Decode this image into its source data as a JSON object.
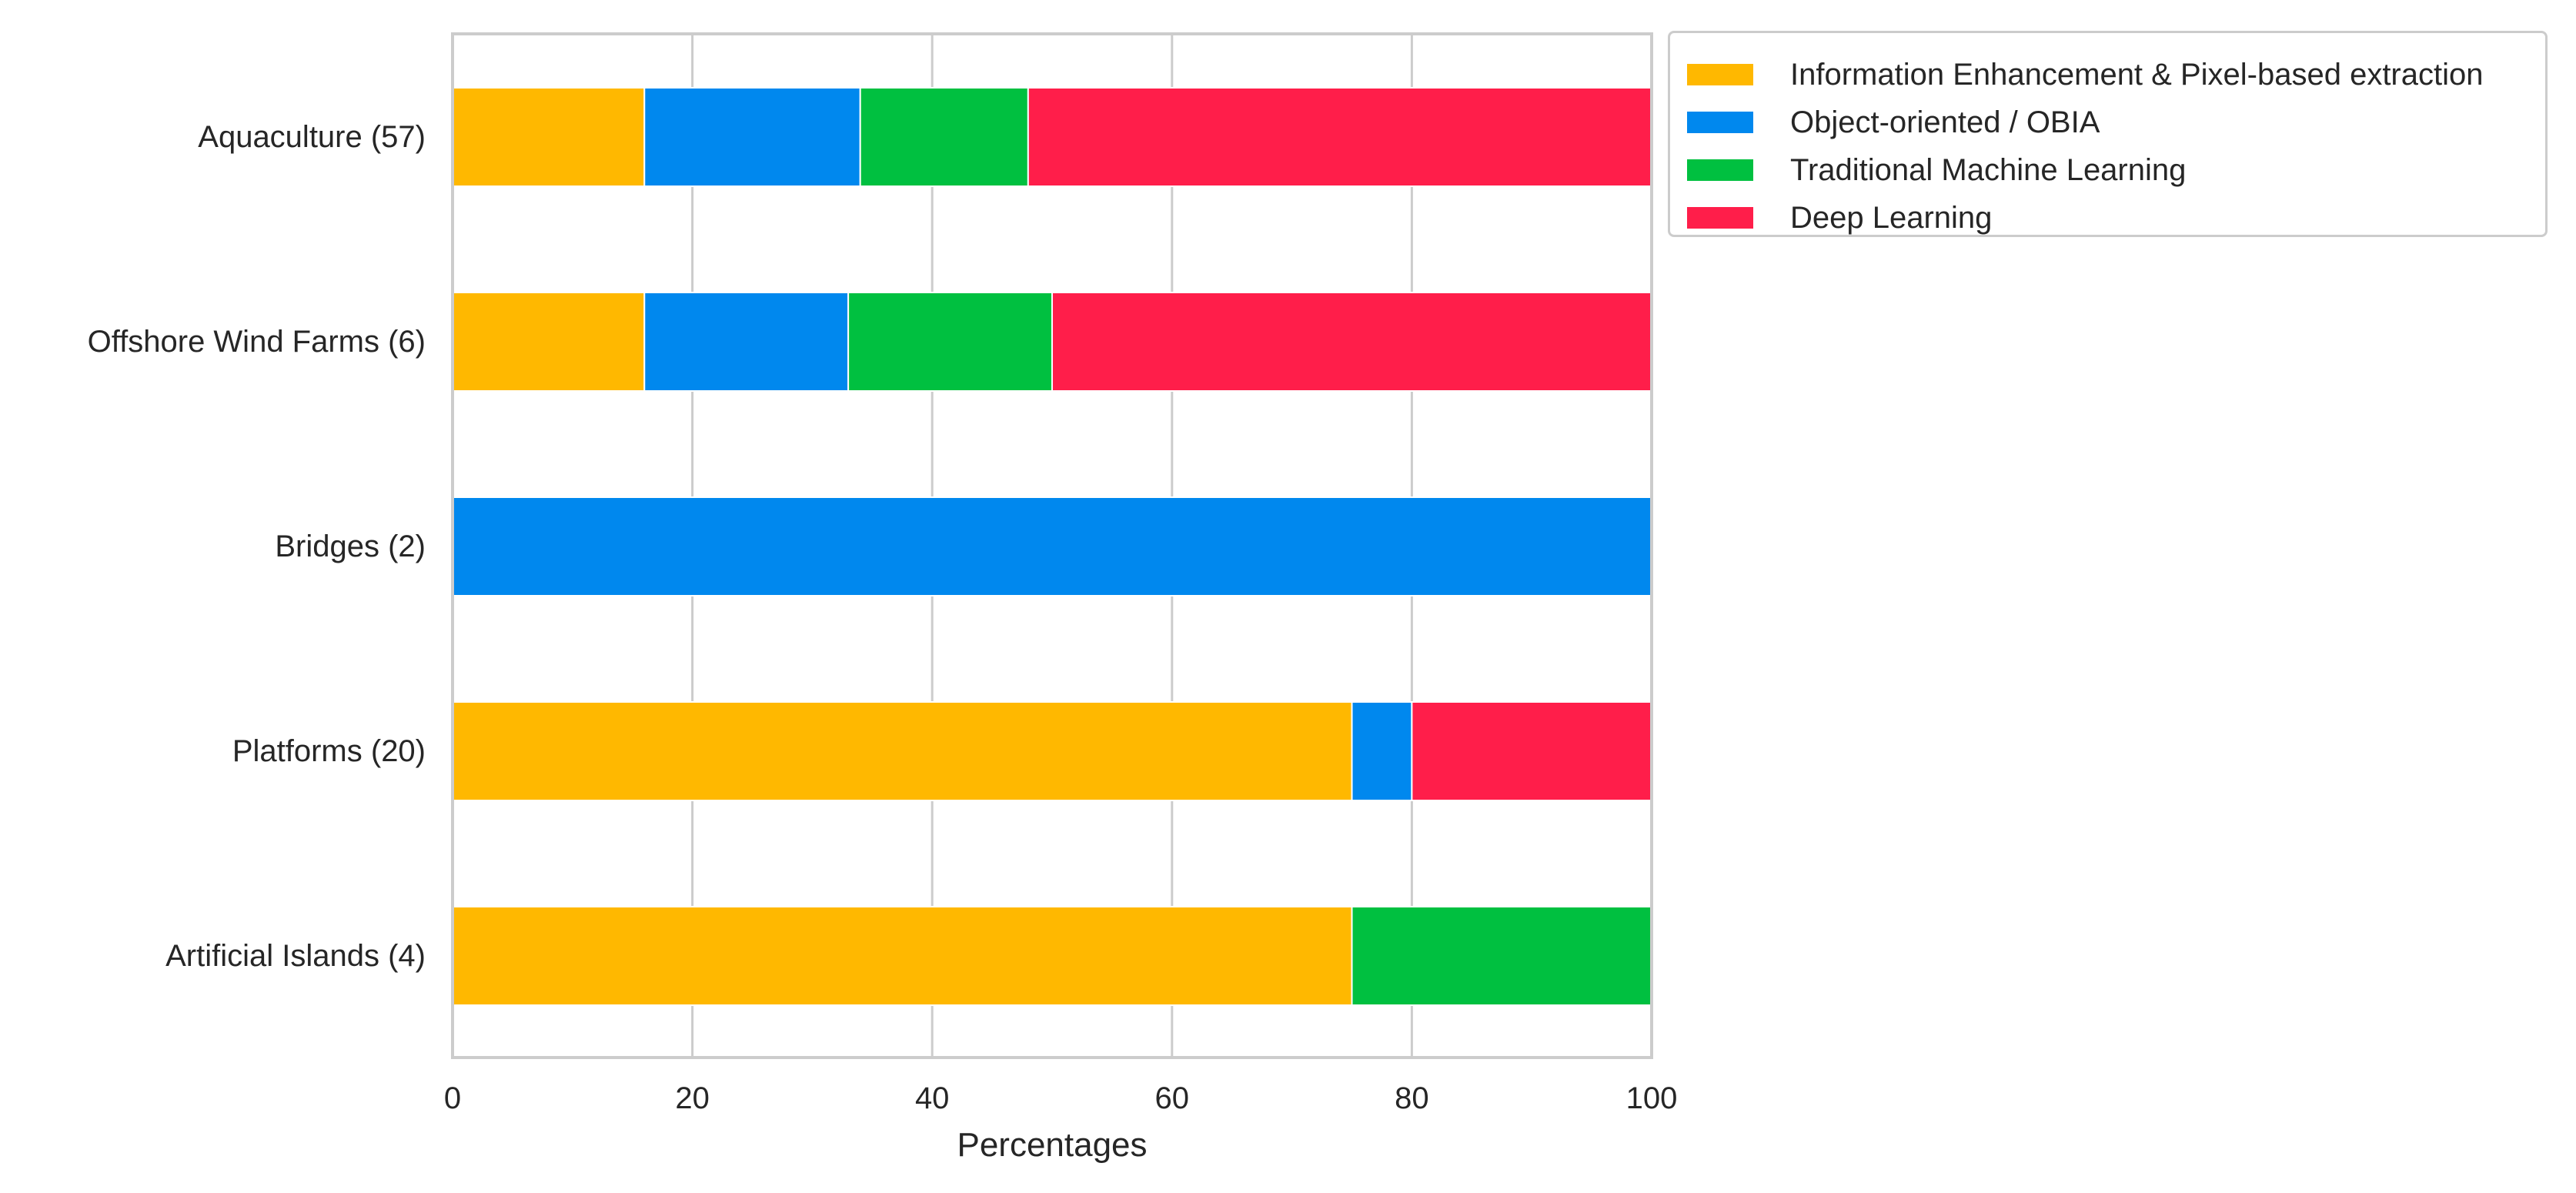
{
  "chart_data": {
    "type": "bar",
    "orientation": "horizontal",
    "stacked": true,
    "title": "",
    "xlabel": "Percentages",
    "ylabel": "",
    "xlim": [
      0,
      100
    ],
    "xticks": [
      0,
      20,
      40,
      60,
      80,
      100
    ],
    "grid": true,
    "legend_position": "outside-top-right",
    "categories": [
      "Aquaculture (57)",
      "Offshore Wind Farms (6)",
      "Bridges (2)",
      "Platforms (20)",
      "Artificial Islands (4)"
    ],
    "series": [
      {
        "name": "Information Enhancement & Pixel-based extraction",
        "color": "#FFB800",
        "values": [
          16,
          16,
          0,
          75,
          75
        ]
      },
      {
        "name": "Object-oriented / OBIA",
        "color": "#0088EE",
        "values": [
          18,
          17,
          100,
          5,
          0
        ]
      },
      {
        "name": "Traditional Machine Learning",
        "color": "#00C040",
        "values": [
          14,
          17,
          0,
          0,
          25
        ]
      },
      {
        "name": "Deep Learning",
        "color": "#FF1E4A",
        "values": [
          52,
          50,
          0,
          20,
          0
        ]
      }
    ]
  }
}
